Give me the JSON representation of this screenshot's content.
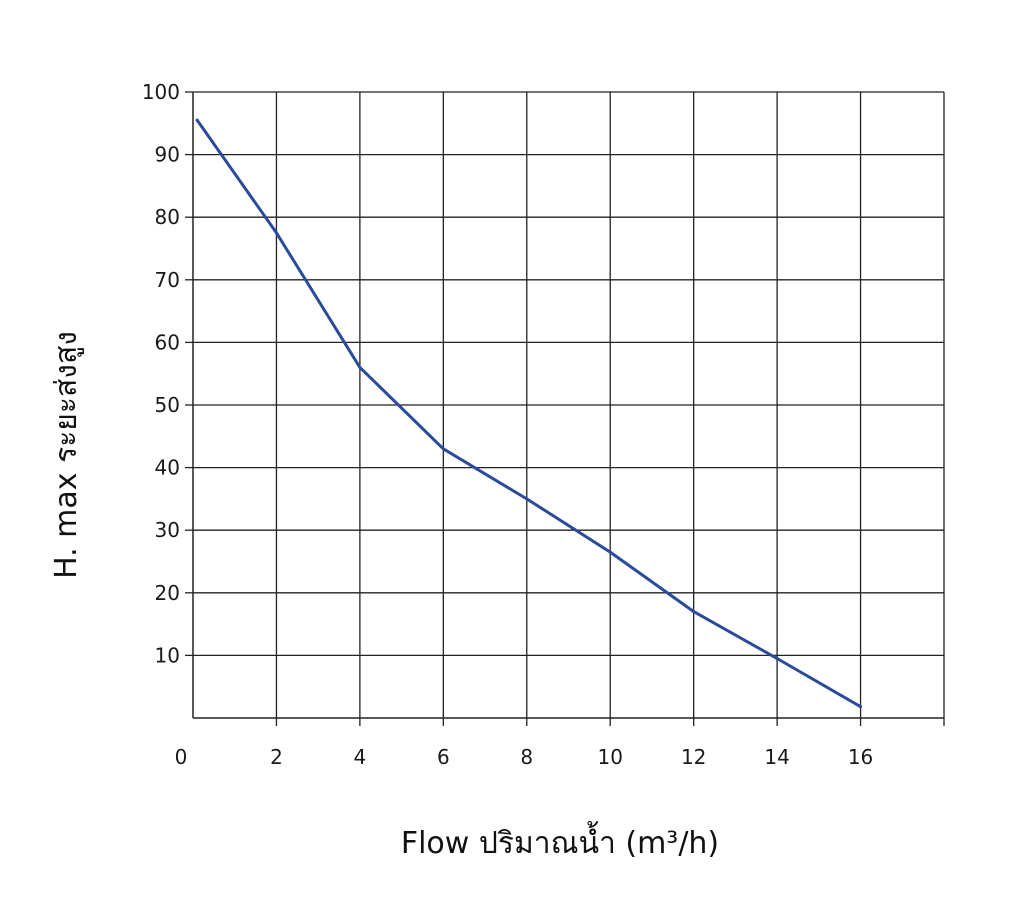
{
  "chart_data": {
    "type": "line",
    "xlabel": "Flow  ปริมาณน้ำ (m³/h)",
    "ylabel": "H. max  ระยะส่งสูง",
    "xlim": [
      0,
      18
    ],
    "ylim": [
      0,
      100
    ],
    "x_ticks": [
      0,
      2,
      4,
      6,
      8,
      10,
      12,
      14,
      16
    ],
    "y_ticks": [
      10,
      20,
      30,
      40,
      50,
      60,
      70,
      80,
      90,
      100
    ],
    "x_grid": [
      2,
      4,
      6,
      8,
      10,
      12,
      14,
      16,
      18
    ],
    "y_grid": [
      10,
      20,
      30,
      40,
      50,
      60,
      70,
      80,
      90,
      100
    ],
    "grid": true,
    "line_color": "#2a4a9a",
    "series": [
      {
        "x": [
          0.1,
          2,
          4,
          6,
          8,
          10,
          12,
          14,
          16
        ],
        "y": [
          95.5,
          77.5,
          56,
          43,
          35,
          26.5,
          17,
          9.5,
          1.8
        ]
      }
    ]
  }
}
